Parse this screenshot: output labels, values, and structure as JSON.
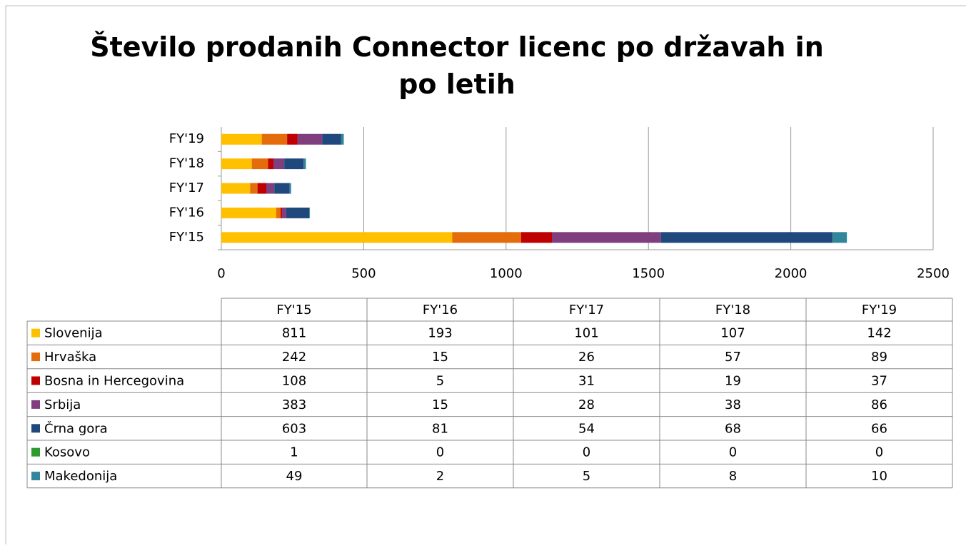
{
  "chart_data": {
    "type": "stacked_bar_horizontal",
    "title": "Število prodanih  Connector licenc po državah in po letih",
    "categories": [
      "FY'15",
      "FY'16",
      "FY'17",
      "FY'18",
      "FY'19"
    ],
    "series": [
      {
        "name": "Slovenija",
        "color": "#FFC000",
        "values": [
          811,
          193,
          101,
          107,
          142
        ]
      },
      {
        "name": "Hrvaška",
        "color": "#E46C0A",
        "values": [
          242,
          15,
          26,
          57,
          89
        ]
      },
      {
        "name": "Bosna in Hercegovina",
        "color": "#C00000",
        "values": [
          108,
          5,
          31,
          19,
          37
        ]
      },
      {
        "name": "Srbija",
        "color": "#7F3F7F",
        "values": [
          383,
          15,
          28,
          38,
          86
        ]
      },
      {
        "name": "Črna gora",
        "color": "#1F497D",
        "values": [
          603,
          81,
          54,
          68,
          66
        ]
      },
      {
        "name": "Kosovo",
        "color": "#2E9B2E",
        "values": [
          1,
          0,
          0,
          0,
          0
        ]
      },
      {
        "name": "Makedonija",
        "color": "#31859C",
        "values": [
          49,
          2,
          5,
          8,
          10
        ]
      }
    ],
    "xlim": [
      0,
      2500
    ],
    "xticks": [
      0,
      500,
      1000,
      1500,
      2000,
      2500
    ],
    "grid": true
  }
}
